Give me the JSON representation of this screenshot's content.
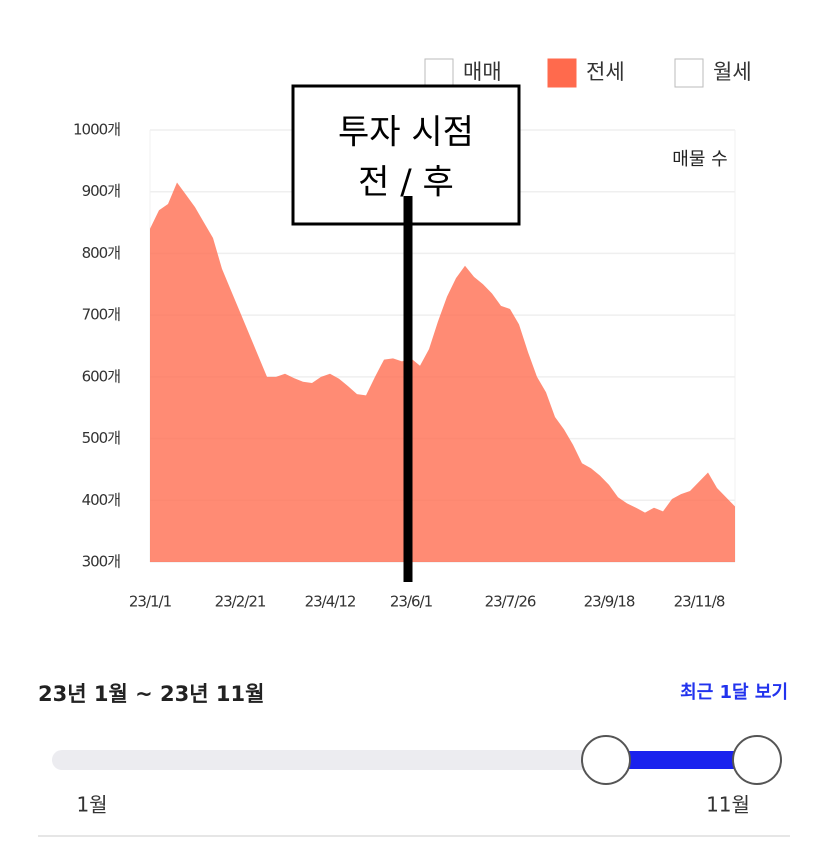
{
  "chart_data": {
    "type": "area",
    "annotation": "매물 수",
    "overlay_lines": [
      "투자 시점",
      "전 / 후"
    ],
    "categories": [
      "23/1/1",
      null,
      null,
      null,
      null,
      null,
      null,
      null,
      null,
      null,
      "23/2/21",
      null,
      null,
      null,
      null,
      null,
      null,
      null,
      null,
      null,
      "23/4/12",
      null,
      null,
      null,
      null,
      null,
      null,
      null,
      null,
      "23/6/1",
      null,
      null,
      null,
      null,
      null,
      null,
      null,
      null,
      null,
      null,
      "23/7/26",
      null,
      null,
      null,
      null,
      null,
      null,
      null,
      null,
      null,
      null,
      "23/9/18",
      null,
      null,
      null,
      null,
      null,
      null,
      null,
      null,
      null,
      "23/11/8",
      null,
      null,
      null,
      null
    ],
    "series": [
      {
        "name": "매매",
        "visible": false
      },
      {
        "name": "전세",
        "visible": true,
        "color": "#ff6a4d",
        "values": [
          840,
          870,
          880,
          915,
          895,
          875,
          850,
          825,
          775,
          740,
          705,
          670,
          635,
          600,
          600,
          605,
          598,
          592,
          590,
          600,
          605,
          597,
          585,
          572,
          570,
          600,
          628,
          630,
          625,
          630,
          618,
          645,
          690,
          730,
          760,
          780,
          762,
          750,
          735,
          715,
          710,
          685,
          640,
          600,
          575,
          535,
          515,
          490,
          460,
          452,
          440,
          425,
          405,
          395,
          388,
          380,
          388,
          382,
          402,
          410,
          415,
          430,
          445,
          420,
          405,
          390
        ]
      },
      {
        "name": "월세",
        "visible": false
      }
    ],
    "ylim": [
      300,
      1000
    ],
    "yticks": [
      {
        "value": 300,
        "label": "300개"
      },
      {
        "value": 400,
        "label": "400개"
      },
      {
        "value": 500,
        "label": "500개"
      },
      {
        "value": 600,
        "label": "600개"
      },
      {
        "value": 700,
        "label": "700개"
      },
      {
        "value": 800,
        "label": "800개"
      },
      {
        "value": 900,
        "label": "900개"
      },
      {
        "value": 1000,
        "label": "1000개"
      }
    ],
    "grid": true
  },
  "range": {
    "label": "23년 1월 ~ 23년 11월",
    "link": "최근 1달 보기",
    "slider_min_label": "1월",
    "slider_max_label": "11월"
  }
}
